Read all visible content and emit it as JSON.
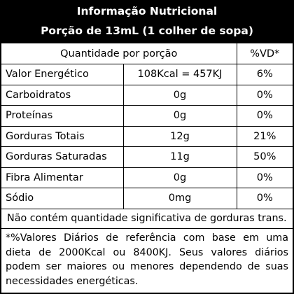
{
  "header": {
    "title": "Informação Nutricional",
    "portion": "Porção de 13mL (1 colher de sopa)"
  },
  "table": {
    "columns": [
      "Quantidade por porção",
      "%VD*"
    ],
    "rows": [
      {
        "nutrient": "Valor Energético",
        "amount": "108Kcal = 457KJ",
        "vd": "6%"
      },
      {
        "nutrient": "Carboidratos",
        "amount": "0g",
        "vd": "0%"
      },
      {
        "nutrient": "Proteínas",
        "amount": "0g",
        "vd": "0%"
      },
      {
        "nutrient": "Gorduras Totais",
        "amount": "12g",
        "vd": "21%"
      },
      {
        "nutrient": "Gorduras Saturadas",
        "amount": "11g",
        "vd": "50%"
      },
      {
        "nutrient": "Fibra Alimentar",
        "amount": "0g",
        "vd": "0%"
      },
      {
        "nutrient": "Sódio",
        "amount": "0mg",
        "vd": "0%"
      }
    ]
  },
  "notes": {
    "trans": "Não contém quantidade significativa de gorduras trans.",
    "reference": "*%Valores Diários de referência com base em uma dieta de 2000Kcal ou 8400KJ. Seus valores diários podem ser maiores ou menores dependendo de suas necessidades energéticas."
  }
}
